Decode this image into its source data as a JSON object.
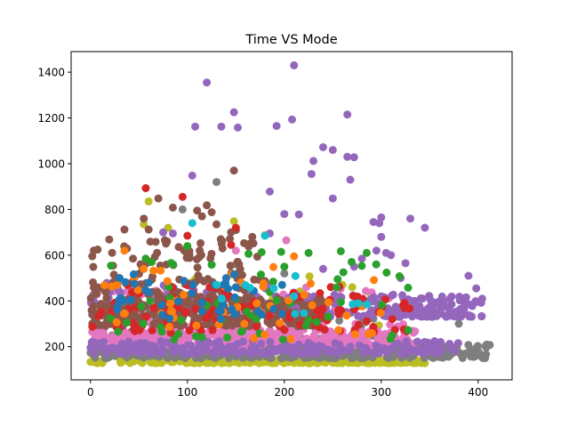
{
  "chart_data": {
    "type": "scatter",
    "title": "Time VS Mode",
    "xlabel": "",
    "ylabel": "",
    "xlim": [
      -20,
      435
    ],
    "ylim": [
      55,
      1490
    ],
    "x_ticks": [
      0,
      100,
      200,
      300,
      400
    ],
    "y_ticks": [
      200,
      400,
      600,
      800,
      1000,
      1200,
      1400
    ],
    "grid": false,
    "legend": "none",
    "series": [
      {
        "color": "#bcbd22",
        "clusters": [
          {
            "x_range": [
              0,
              345
            ],
            "y_range": [
              128,
              145
            ],
            "count": 240
          },
          {
            "x_range": [
              5,
              330
            ],
            "y_range": [
              150,
              520
            ],
            "count": 30
          }
        ],
        "points": [
          [
            60,
            835
          ],
          [
            148,
            748
          ],
          [
            180,
            688
          ],
          [
            55,
            735
          ],
          [
            80,
            720
          ],
          [
            260,
            470
          ],
          [
            300,
            350
          ],
          [
            270,
            460
          ]
        ]
      },
      {
        "color": "#7f7f7f",
        "clusters": [
          {
            "x_range": [
              0,
              415
            ],
            "y_range": [
              150,
              210
            ],
            "count": 320
          },
          {
            "x_range": [
              0,
              320
            ],
            "y_range": [
              210,
              380
            ],
            "count": 120
          }
        ],
        "points": [
          [
            130,
            920
          ],
          [
            95,
            800
          ],
          [
            380,
            300
          ],
          [
            200,
            520
          ],
          [
            150,
            560
          ]
        ]
      },
      {
        "color": "#e377c2",
        "clusters": [
          {
            "x_range": [
              0,
              335
            ],
            "y_range": [
              205,
              270
            ],
            "count": 380
          },
          {
            "x_range": [
              0,
              330
            ],
            "y_range": [
              270,
              460
            ],
            "count": 90
          }
        ],
        "points": [
          [
            202,
            665
          ],
          [
            150,
            620
          ],
          [
            40,
            450
          ]
        ]
      },
      {
        "color": "#9467bd",
        "clusters": [
          {
            "x_range": [
              0,
              380
            ],
            "y_range": [
              170,
              225
            ],
            "count": 220
          },
          {
            "x_range": [
              200,
              405
            ],
            "y_range": [
              330,
              430
            ],
            "count": 200
          },
          {
            "x_range": [
              0,
              200
            ],
            "y_range": [
              380,
              480
            ],
            "count": 60
          }
        ],
        "points": [
          [
            210,
            1430
          ],
          [
            120,
            1355
          ],
          [
            148,
            1225
          ],
          [
            265,
            1215
          ],
          [
            208,
            1193
          ],
          [
            108,
            1162
          ],
          [
            135,
            1162
          ],
          [
            152,
            1158
          ],
          [
            192,
            1165
          ],
          [
            240,
            1072
          ],
          [
            250,
            1060
          ],
          [
            230,
            1012
          ],
          [
            265,
            1030
          ],
          [
            272,
            1028
          ],
          [
            105,
            948
          ],
          [
            228,
            955
          ],
          [
            268,
            930
          ],
          [
            185,
            878
          ],
          [
            250,
            848
          ],
          [
            200,
            780
          ],
          [
            215,
            778
          ],
          [
            300,
            765
          ],
          [
            298,
            740
          ],
          [
            292,
            745
          ],
          [
            330,
            760
          ],
          [
            345,
            720
          ],
          [
            75,
            700
          ],
          [
            85,
            695
          ],
          [
            300,
            680
          ],
          [
            295,
            620
          ],
          [
            280,
            585
          ],
          [
            310,
            600
          ],
          [
            305,
            610
          ],
          [
            325,
            565
          ],
          [
            390,
            510
          ],
          [
            398,
            455
          ],
          [
            272,
            550
          ],
          [
            320,
            500
          ],
          [
            185,
            695
          ],
          [
            240,
            540
          ]
        ]
      },
      {
        "color": "#8c564b",
        "clusters": [
          {
            "x_range": [
              0,
              240
            ],
            "y_range": [
              290,
              420
            ],
            "count": 330
          },
          {
            "x_range": [
              0,
              180
            ],
            "y_range": [
              420,
              680
            ],
            "count": 120
          }
        ],
        "points": [
          [
            148,
            970
          ],
          [
            120,
            818
          ],
          [
            85,
            808
          ],
          [
            70,
            848
          ],
          [
            110,
            795
          ],
          [
            125,
            788
          ],
          [
            130,
            735
          ],
          [
            55,
            760
          ],
          [
            60,
            712
          ],
          [
            145,
            700
          ],
          [
            150,
            710
          ],
          [
            35,
            712
          ],
          [
            115,
            770
          ]
        ]
      },
      {
        "color": "#d62728",
        "clusters": [
          {
            "x_range": [
              0,
              330
            ],
            "y_range": [
              260,
              470
            ],
            "count": 110
          }
        ],
        "points": [
          [
            57,
            893
          ],
          [
            95,
            855
          ],
          [
            100,
            685
          ],
          [
            145,
            645
          ],
          [
            150,
            720
          ]
        ]
      },
      {
        "color": "#2ca02c",
        "clusters": [
          {
            "x_range": [
              0,
              330
            ],
            "y_range": [
              230,
              620
            ],
            "count": 60
          }
        ],
        "points": [
          [
            57,
            585
          ],
          [
            63,
            570
          ],
          [
            100,
            640
          ],
          [
            225,
            610
          ],
          [
            255,
            495
          ],
          [
            200,
            550
          ]
        ]
      },
      {
        "color": "#ff7f0e",
        "clusters": [
          {
            "x_range": [
              0,
              300
            ],
            "y_range": [
              230,
              560
            ],
            "count": 50
          }
        ],
        "points": [
          [
            35,
            620
          ],
          [
            45,
            500
          ],
          [
            210,
            595
          ],
          [
            55,
            540
          ]
        ]
      },
      {
        "color": "#1f77b4",
        "clusters": [
          {
            "x_range": [
              20,
              200
            ],
            "y_range": [
              320,
              520
            ],
            "count": 40
          }
        ],
        "points": [
          [
            60,
            480
          ],
          [
            140,
            500
          ],
          [
            130,
            470
          ],
          [
            150,
            460
          ]
        ]
      },
      {
        "color": "#17becf",
        "clusters": [
          {
            "x_range": [
              100,
              290
            ],
            "y_range": [
              340,
              520
            ],
            "count": 10
          }
        ],
        "points": [
          [
            105,
            740
          ],
          [
            180,
            685
          ],
          [
            285,
            385
          ],
          [
            210,
            420
          ]
        ]
      }
    ]
  }
}
